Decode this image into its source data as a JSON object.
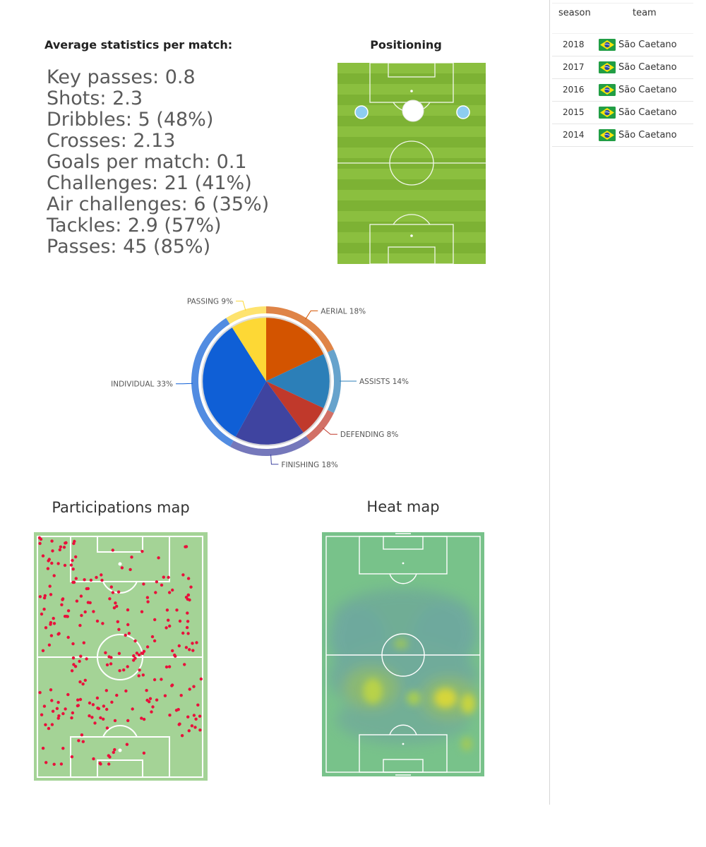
{
  "stats": {
    "heading": "Average statistics per match:",
    "items": [
      "Key passes: 0.8",
      "Shots: 2.3",
      "Dribbles: 5 (48%)",
      "Crosses: 2.13",
      "Goals per match: 0.1",
      "Challenges: 21 (41%)",
      "Air challenges: 6 (35%)",
      "Tackles: 2.9 (57%)",
      "Passes: 45 (85%)"
    ]
  },
  "positioning": {
    "heading": "Positioning",
    "colors": {
      "grass_light": "#8bbf3f",
      "grass_dark": "#7db234",
      "main_marker": "#ffffff",
      "secondary_marker": "#8dcdf0"
    }
  },
  "chart_data": {
    "type": "pie",
    "slices": [
      {
        "label": "AERIAL 18%",
        "value": 18,
        "color": "#d35400"
      },
      {
        "label": "ASSISTS 14%",
        "value": 14,
        "color": "#2c7fb8"
      },
      {
        "label": "DEFENDING 8%",
        "value": 8,
        "color": "#c0392b"
      },
      {
        "label": "FINISHING 18%",
        "value": 18,
        "color": "#3f44a0"
      },
      {
        "label": "INDIVIDUAL 33%",
        "value": 33,
        "color": "#0f5fd6"
      },
      {
        "label": "PASSING 9%",
        "value": 9,
        "color": "#fdd835"
      }
    ]
  },
  "participations": {
    "heading": "Participations map",
    "dot_color": "#e8113b",
    "pitch_color": "#a4d396"
  },
  "heatmap": {
    "heading": "Heat map",
    "pitch_color": "#78c28a"
  },
  "career": {
    "columns": [
      "season",
      "team"
    ],
    "rows": [
      {
        "season": "2018",
        "team": "São Caetano"
      },
      {
        "season": "2017",
        "team": "São Caetano"
      },
      {
        "season": "2016",
        "team": "São Caetano"
      },
      {
        "season": "2015",
        "team": "São Caetano"
      },
      {
        "season": "2014",
        "team": "São Caetano"
      }
    ],
    "flag_icon": "brazil-flag-icon"
  }
}
